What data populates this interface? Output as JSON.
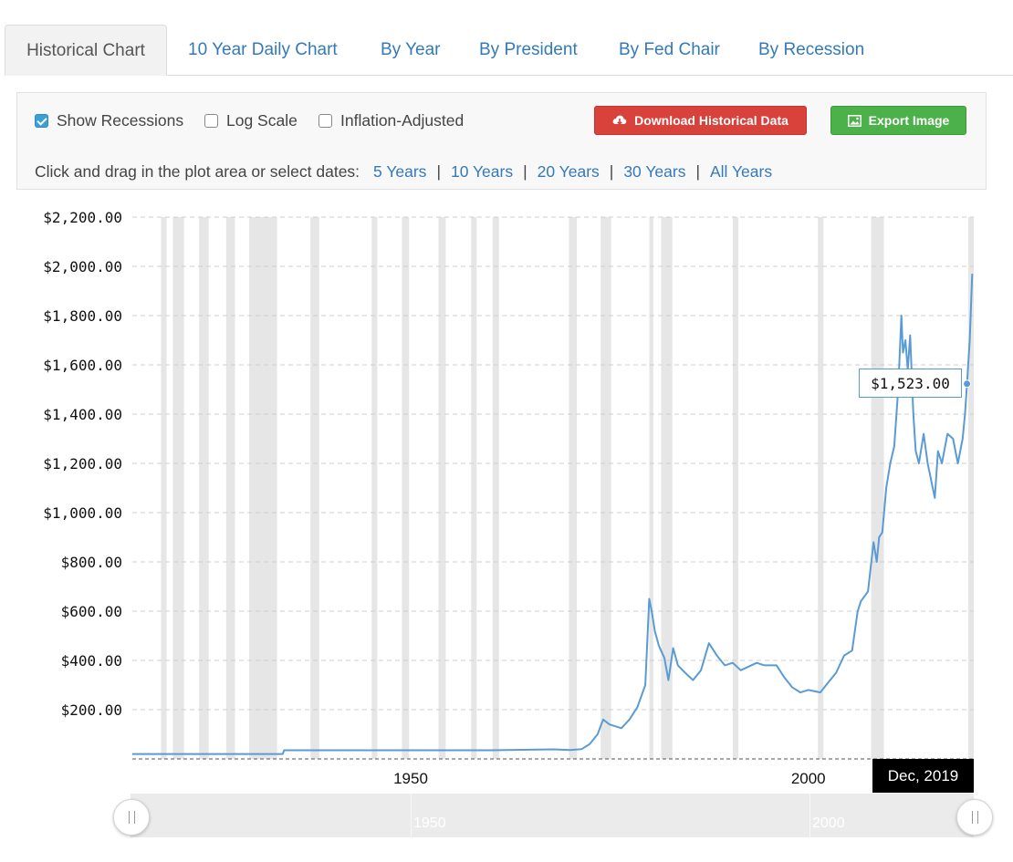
{
  "tabs": [
    {
      "label": "Historical Chart",
      "active": true
    },
    {
      "label": "10 Year Daily Chart",
      "active": false
    },
    {
      "label": "By Year",
      "active": false
    },
    {
      "label": "By President",
      "active": false
    },
    {
      "label": "By Fed Chair",
      "active": false
    },
    {
      "label": "By Recession",
      "active": false
    }
  ],
  "controls": {
    "show_recessions": {
      "label": "Show Recessions",
      "checked": true
    },
    "log_scale": {
      "label": "Log Scale",
      "checked": false
    },
    "inflation_adjusted": {
      "label": "Inflation-Adjusted",
      "checked": false
    },
    "download_label": "Download Historical Data",
    "export_label": "Export Image",
    "range_prompt": "Click and drag in the plot area or select dates:",
    "ranges": [
      "5 Years",
      "10 Years",
      "20 Years",
      "30 Years",
      "All Years"
    ]
  },
  "colors": {
    "line": "#5b9bd5",
    "recession": "#e6e6e6",
    "download": "#d9413b",
    "export": "#4db14a",
    "link": "#3479b8"
  },
  "tooltip": {
    "value": "$1,523.00",
    "date": "Dec, 2019"
  },
  "navigator": {
    "labels": [
      "1950",
      "2000"
    ]
  },
  "chart_data": {
    "type": "line",
    "series": [
      {
        "values_description_only": false
      }
    ],
    "y_ticks": [
      "$2,200.00",
      "$2,000.00",
      "$1,800.00",
      "$1,600.00",
      "$1,400.00",
      "$1,200.00",
      "$1,000.00",
      "$800.00",
      "$600.00",
      "$400.00",
      "$200.00"
    ],
    "y_tick_values": [
      2200,
      2000,
      1800,
      1600,
      1400,
      1200,
      1000,
      800,
      600,
      400,
      200
    ],
    "ylim": [
      0,
      2200
    ],
    "x_ticks": [
      "1950",
      "2000"
    ],
    "x_tick_values": [
      1950,
      2000
    ],
    "xlim": [
      1915,
      2020.8
    ],
    "grid": true,
    "recessions": [
      [
        1918.6,
        1919.3
      ],
      [
        1920.1,
        1921.5
      ],
      [
        1923.4,
        1924.6
      ],
      [
        1926.8,
        1927.9
      ],
      [
        1929.7,
        1933.2
      ],
      [
        1937.4,
        1938.5
      ],
      [
        1945.1,
        1945.8
      ],
      [
        1948.9,
        1949.8
      ],
      [
        1953.5,
        1954.4
      ],
      [
        1957.6,
        1958.3
      ],
      [
        1960.3,
        1961.1
      ],
      [
        1969.9,
        1970.9
      ],
      [
        1973.9,
        1975.2
      ],
      [
        1980.0,
        1980.5
      ],
      [
        1981.5,
        1982.9
      ],
      [
        1990.5,
        1991.2
      ],
      [
        2001.2,
        2001.9
      ],
      [
        2007.9,
        2009.5
      ],
      [
        2020.1,
        2020.8
      ]
    ],
    "x": [
      1915,
      1920,
      1930,
      1933.9,
      1934.1,
      1940,
      1950,
      1960,
      1968,
      1970,
      1971.5,
      1972.5,
      1973.5,
      1974.2,
      1975,
      1976.5,
      1977.5,
      1978.5,
      1979.5,
      1980.0,
      1980.3,
      1980.7,
      1981.2,
      1981.9,
      1982.4,
      1983.0,
      1983.6,
      1984.5,
      1985.5,
      1986.5,
      1987.5,
      1988.5,
      1989.5,
      1990.5,
      1991.5,
      1993.5,
      1994.5,
      1996.0,
      1997.0,
      1998.0,
      1999.0,
      2000.0,
      2001.5,
      2002.5,
      2003.5,
      2004.5,
      2005.5,
      2006.2,
      2006.6,
      2007.5,
      2008.2,
      2008.6,
      2008.9,
      2009.3,
      2009.8,
      2010.3,
      2010.8,
      2011.3,
      2011.7,
      2011.9,
      2012.2,
      2012.5,
      2012.8,
      2013.2,
      2013.5,
      2013.9,
      2014.5,
      2015.0,
      2015.9,
      2016.3,
      2016.8,
      2017.5,
      2018.2,
      2018.8,
      2019.4,
      2019.7,
      2019.95,
      2020.3,
      2020.6
    ],
    "y": [
      20,
      20,
      20,
      20,
      35,
      35,
      35,
      35,
      39,
      36,
      40,
      60,
      100,
      160,
      140,
      125,
      160,
      210,
      300,
      650,
      600,
      520,
      460,
      410,
      320,
      450,
      380,
      350,
      320,
      360,
      470,
      420,
      380,
      390,
      360,
      390,
      380,
      380,
      330,
      290,
      270,
      280,
      270,
      310,
      350,
      420,
      440,
      600,
      640,
      680,
      880,
      800,
      900,
      920,
      1100,
      1200,
      1270,
      1500,
      1800,
      1650,
      1700,
      1580,
      1720,
      1400,
      1250,
      1200,
      1320,
      1200,
      1060,
      1250,
      1200,
      1320,
      1300,
      1200,
      1300,
      1400,
      1523,
      1700,
      1970
    ]
  }
}
